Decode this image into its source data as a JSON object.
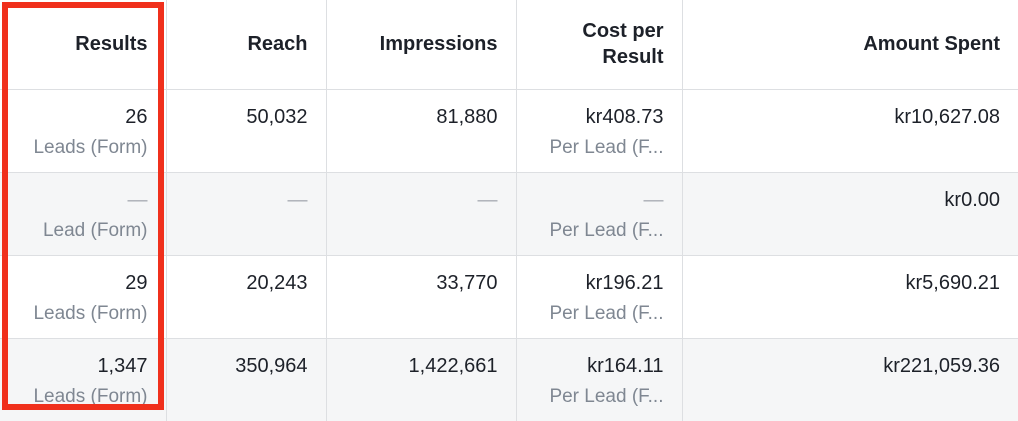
{
  "headers": {
    "results": "Results",
    "reach": "Reach",
    "impressions": "Impressions",
    "cost_per_result_line1": "Cost per",
    "cost_per_result_line2": "Result",
    "amount_spent": "Amount Spent"
  },
  "rows": [
    {
      "results": "26",
      "results_sub": "Leads (Form)",
      "reach": "50,032",
      "impressions": "81,880",
      "cost": "kr408.73",
      "cost_sub": "Per Lead (F...",
      "amount": "kr10,627.08"
    },
    {
      "results": "—",
      "results_sub": "Lead (Form)",
      "reach": "—",
      "impressions": "—",
      "cost": "—",
      "cost_sub": "Per Lead (F...",
      "amount": "kr0.00"
    },
    {
      "results": "29",
      "results_sub": "Leads (Form)",
      "reach": "20,243",
      "impressions": "33,770",
      "cost": "kr196.21",
      "cost_sub": "Per Lead (F...",
      "amount": "kr5,690.21"
    },
    {
      "results": "1,347",
      "results_sub": "Leads (Form)",
      "reach": "350,964",
      "impressions": "1,422,661",
      "cost": "kr164.11",
      "cost_sub": "Per Lead (F...",
      "amount": "kr221,059.36"
    }
  ],
  "colors": {
    "highlight": "#f0301c",
    "grid": "#dddfe2",
    "alt_row": "#f5f6f7",
    "text": "#1d2129",
    "subtext": "#7f8792"
  }
}
